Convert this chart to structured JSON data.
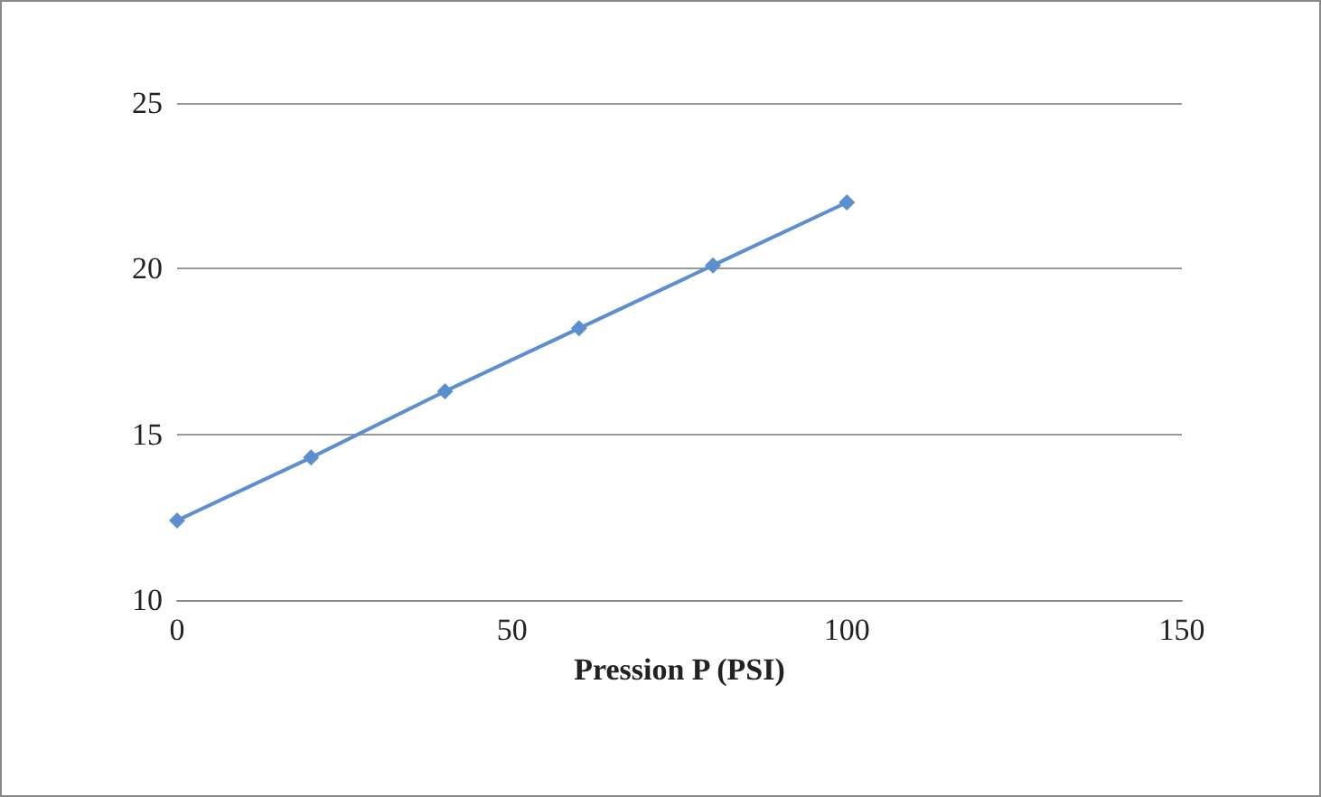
{
  "chart_data": {
    "type": "line",
    "xlabel": "Pression P (PSI)",
    "x": [
      0,
      20,
      40,
      60,
      80,
      100
    ],
    "series": [
      {
        "color": "#5b8fcf",
        "values": [
          12.4,
          14.3,
          16.3,
          18.2,
          20.1,
          22.0
        ]
      }
    ],
    "xlim": [
      0,
      150
    ],
    "xticks": [
      0,
      50,
      100,
      150
    ],
    "ylim": [
      10,
      25
    ],
    "yticks": [
      10,
      15,
      20,
      25
    ],
    "grid": "y",
    "marker": "diamond",
    "line_style": "solid"
  }
}
